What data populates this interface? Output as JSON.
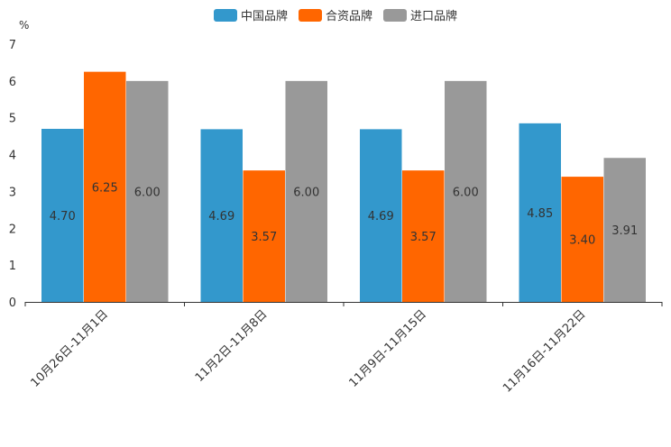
{
  "chart_data": {
    "type": "bar",
    "unit_label": "%",
    "categories": [
      "10月26日-11月1日",
      "11月2日-11月8日",
      "11月9日-11月15日",
      "11月16日-11月22日"
    ],
    "series": [
      {
        "name": "中国品牌",
        "color": "#3398cc",
        "values": [
          4.7,
          4.69,
          4.69,
          4.85
        ],
        "labels": [
          "4.70",
          "4.69",
          "4.69",
          "4.85"
        ]
      },
      {
        "name": "合资品牌",
        "color": "#ff6600",
        "values": [
          6.25,
          3.57,
          3.57,
          3.4
        ],
        "labels": [
          "6.25",
          "3.57",
          "3.57",
          "3.40"
        ]
      },
      {
        "name": "进口品牌",
        "color": "#999999",
        "values": [
          6.0,
          6.0,
          6.0,
          3.91
        ],
        "labels": [
          "6.00",
          "6.00",
          "6.00",
          "3.91"
        ]
      }
    ],
    "y_ticks": [
      "0",
      "1",
      "2",
      "3",
      "4",
      "5",
      "6",
      "7"
    ],
    "ylim": [
      0,
      7
    ],
    "legend_position": "top-center",
    "grid": false
  }
}
